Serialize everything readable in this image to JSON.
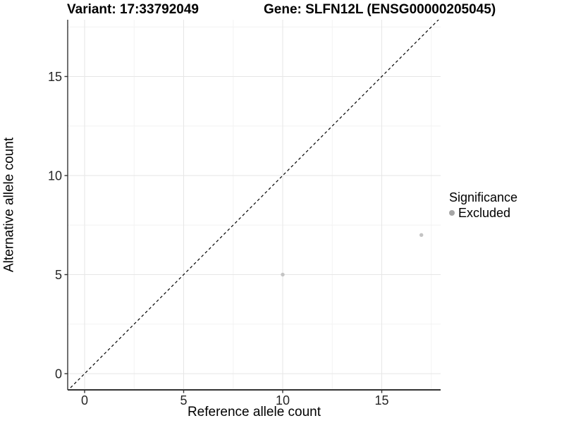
{
  "page": {
    "background": "#ffffff"
  },
  "titles": {
    "variant": "Variant: 17:33792049",
    "gene": "Gene: SLFN12L (ENSG00000205045)"
  },
  "legend": {
    "title": "Significance",
    "position": "right",
    "items": [
      {
        "label": "Excluded",
        "color": "#a6a6a6"
      }
    ]
  },
  "chart_data": {
    "type": "scatter",
    "title_left": "Variant: 17:33792049",
    "title_right": "Gene: SLFN12L (ENSG00000205045)",
    "xlabel": "Reference allele count",
    "ylabel": "Alternative allele count",
    "x_ticks": [
      0,
      5,
      10,
      15
    ],
    "y_ticks": [
      0,
      5,
      10,
      15
    ],
    "x_minor_ticks": [
      2.5,
      7.5,
      12.5,
      17.5
    ],
    "y_minor_ticks": [
      2.5,
      7.5,
      12.5,
      17.5
    ],
    "xlim": [
      -0.85,
      17.97
    ],
    "ylim": [
      -0.82,
      17.86
    ],
    "grid": true,
    "legend_title": "Significance",
    "identity_line": {
      "style": "dashed",
      "color": "#000000",
      "from": [
        -0.9,
        -0.9
      ],
      "to": [
        18,
        18
      ]
    },
    "series": [
      {
        "name": "Excluded",
        "color": "#c4c4c4",
        "points": [
          {
            "x": 10,
            "y": 5
          },
          {
            "x": 17,
            "y": 7
          }
        ]
      }
    ],
    "colors": {
      "grid_major": "#e6e6e6",
      "grid_minor": "#f2f2f2",
      "axis_line": "#333333",
      "tick_text": "#262626"
    }
  }
}
